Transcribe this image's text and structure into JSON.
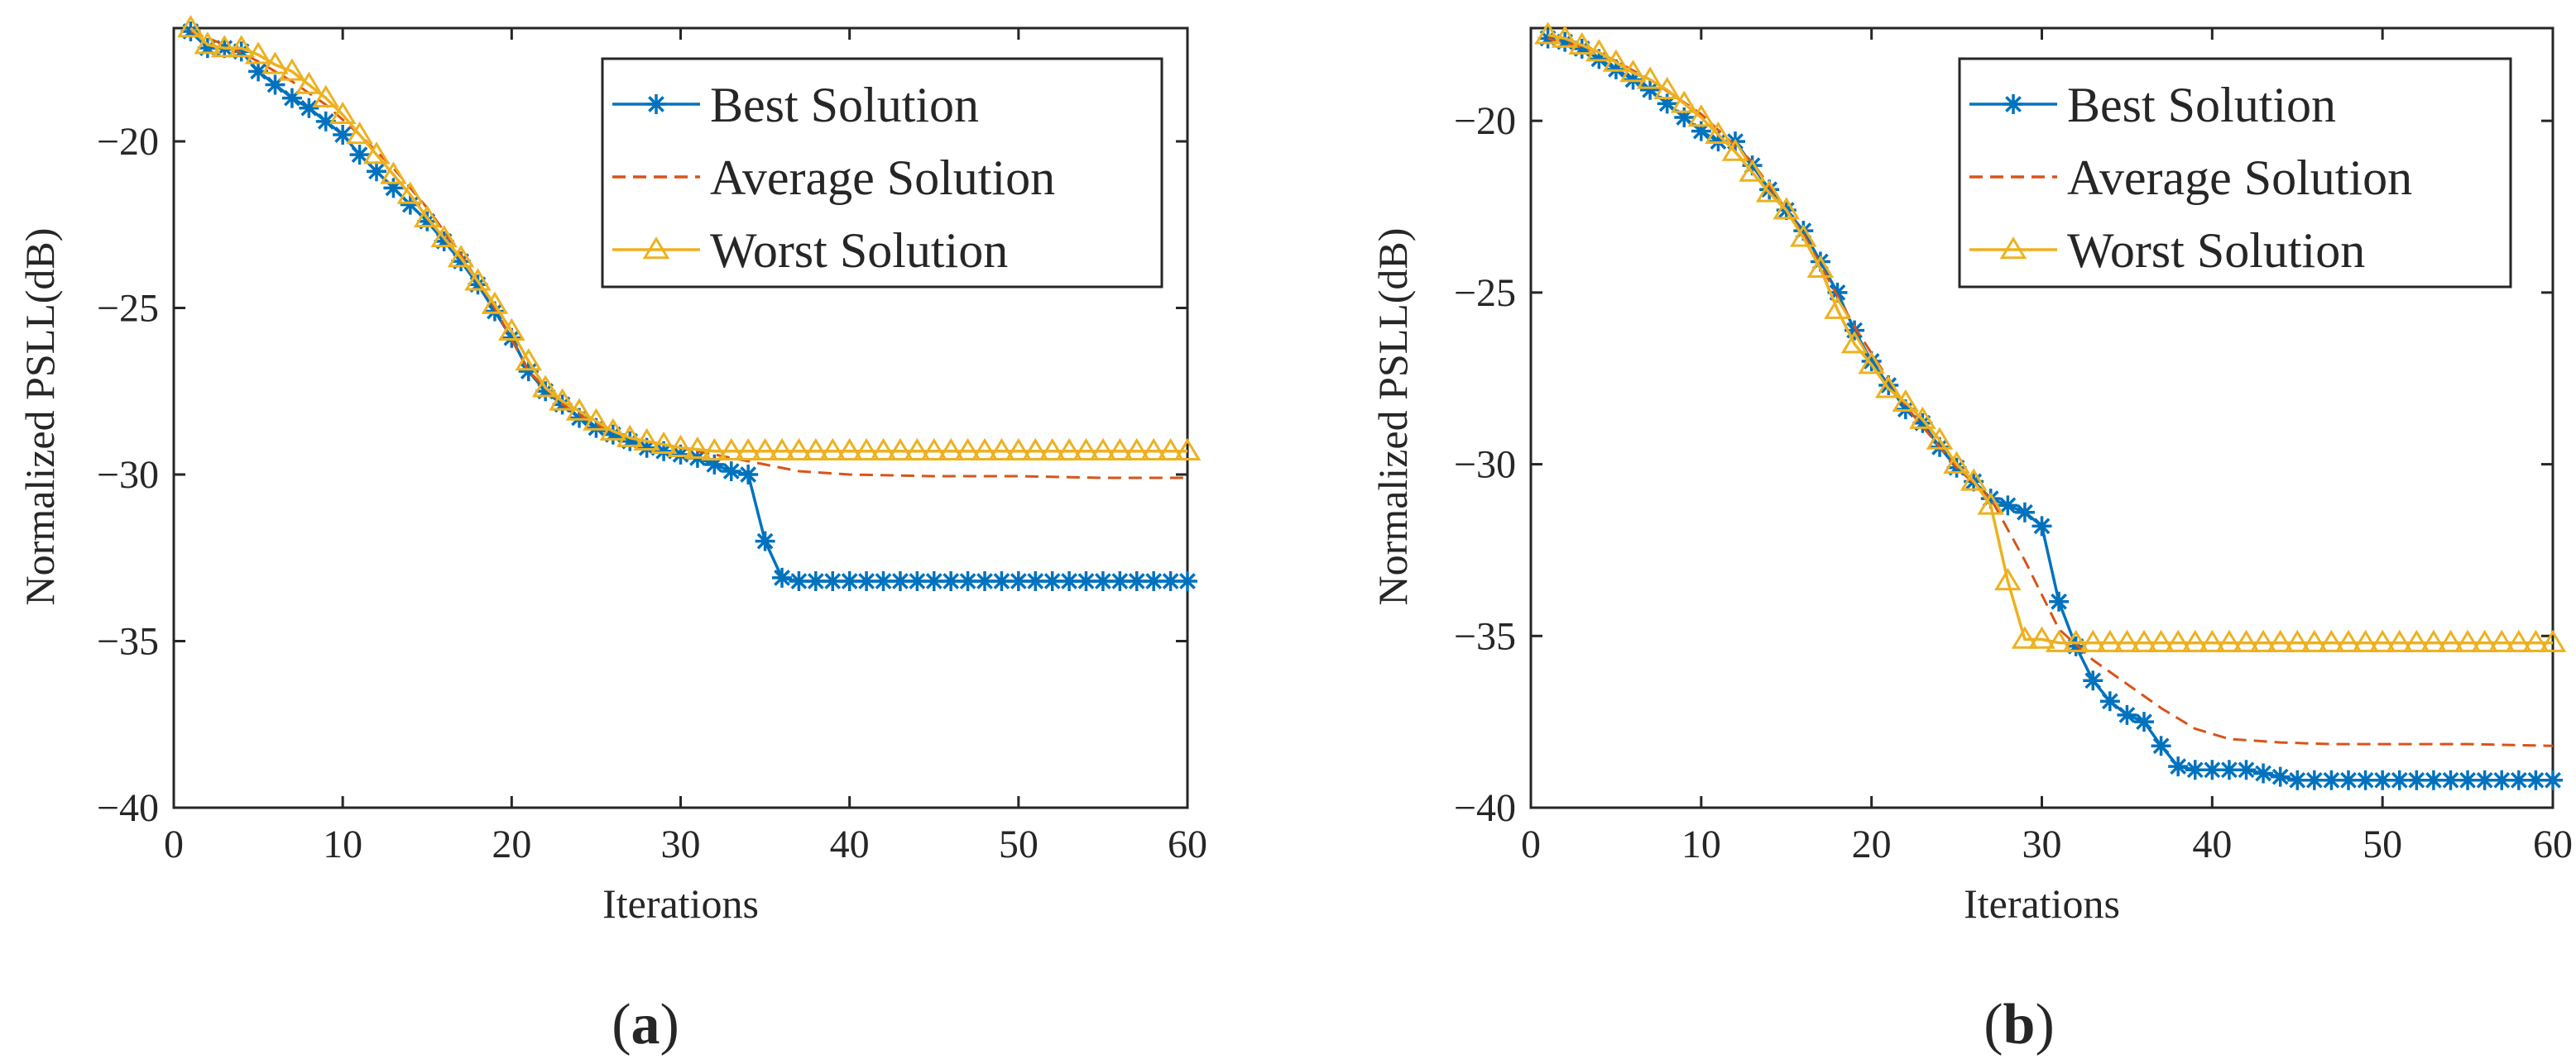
{
  "colors": {
    "best": "#0072BD",
    "average": "#D95319",
    "worst": "#EDB120",
    "axis": "#262626"
  },
  "chart_data": [
    {
      "panel_label": "a",
      "type": "line",
      "xlabel": "Iterations",
      "ylabel": "Normalized PSLL(dB)",
      "xlim": [
        0,
        60
      ],
      "ylim": [
        -40,
        -16.6
      ],
      "xticks": [
        0,
        10,
        20,
        30,
        40,
        50,
        60
      ],
      "yticks": [
        -20,
        -25,
        -30,
        -35,
        -40
      ],
      "legend_position": "top-right",
      "grid": false,
      "series": [
        {
          "name": "Best Solution",
          "style": "solid",
          "marker": "asterisk",
          "x": [
            1,
            2,
            3,
            4,
            5,
            6,
            7,
            8,
            9,
            10,
            11,
            12,
            13,
            14,
            15,
            16,
            17,
            18,
            19,
            20,
            21,
            22,
            23,
            24,
            25,
            26,
            27,
            28,
            29,
            30,
            31,
            32,
            33,
            34,
            35,
            36,
            37,
            38,
            39,
            40,
            41,
            42,
            43,
            44,
            45,
            46,
            47,
            48,
            49,
            50,
            51,
            52,
            53,
            54,
            55,
            56,
            57,
            58,
            59,
            60
          ],
          "y": [
            -16.7,
            -17.2,
            -17.2,
            -17.3,
            -17.9,
            -18.3,
            -18.7,
            -19.0,
            -19.4,
            -19.8,
            -20.4,
            -20.9,
            -21.4,
            -21.9,
            -22.4,
            -23.0,
            -23.6,
            -24.3,
            -25.1,
            -25.9,
            -26.9,
            -27.5,
            -27.9,
            -28.3,
            -28.6,
            -28.8,
            -29.0,
            -29.2,
            -29.3,
            -29.4,
            -29.5,
            -29.7,
            -29.9,
            -30.0,
            -32.0,
            -33.1,
            -33.2,
            -33.2,
            -33.2,
            -33.2,
            -33.2,
            -33.2,
            -33.2,
            -33.2,
            -33.2,
            -33.2,
            -33.2,
            -33.2,
            -33.2,
            -33.2,
            -33.2,
            -33.2,
            -33.2,
            -33.2,
            -33.2,
            -33.2,
            -33.2,
            -33.2,
            -33.2,
            -33.2
          ]
        },
        {
          "name": "Average Solution",
          "style": "dashed",
          "marker": "none",
          "x": [
            1,
            3,
            5,
            7,
            9,
            11,
            13,
            15,
            17,
            19,
            21,
            23,
            25,
            27,
            29,
            31,
            33,
            35,
            37,
            40,
            45,
            50,
            55,
            60
          ],
          "y": [
            -16.7,
            -17.1,
            -17.6,
            -18.2,
            -18.9,
            -19.8,
            -20.8,
            -22.0,
            -23.4,
            -25.0,
            -26.9,
            -27.9,
            -28.5,
            -28.9,
            -29.1,
            -29.3,
            -29.5,
            -29.7,
            -29.9,
            -30.0,
            -30.05,
            -30.05,
            -30.1,
            -30.1
          ]
        },
        {
          "name": "Worst Solution",
          "style": "solid",
          "marker": "triangle",
          "x": [
            1,
            2,
            3,
            4,
            5,
            6,
            7,
            8,
            9,
            10,
            11,
            12,
            13,
            14,
            15,
            16,
            17,
            18,
            19,
            20,
            21,
            22,
            23,
            24,
            25,
            26,
            27,
            28,
            29,
            30,
            31,
            32,
            33,
            34,
            35,
            36,
            37,
            38,
            39,
            40,
            41,
            42,
            43,
            44,
            45,
            46,
            47,
            48,
            49,
            50,
            51,
            52,
            53,
            54,
            55,
            56,
            57,
            58,
            59,
            60
          ],
          "y": [
            -16.6,
            -17.1,
            -17.2,
            -17.2,
            -17.4,
            -17.7,
            -17.9,
            -18.3,
            -18.7,
            -19.2,
            -19.8,
            -20.4,
            -21.0,
            -21.6,
            -22.3,
            -22.9,
            -23.5,
            -24.2,
            -24.9,
            -25.7,
            -26.6,
            -27.4,
            -27.8,
            -28.1,
            -28.4,
            -28.7,
            -28.9,
            -29.0,
            -29.1,
            -29.2,
            -29.25,
            -29.3,
            -29.3,
            -29.3,
            -29.3,
            -29.3,
            -29.3,
            -29.3,
            -29.3,
            -29.3,
            -29.3,
            -29.3,
            -29.3,
            -29.3,
            -29.3,
            -29.3,
            -29.3,
            -29.3,
            -29.3,
            -29.3,
            -29.3,
            -29.3,
            -29.3,
            -29.3,
            -29.3,
            -29.3,
            -29.3,
            -29.3,
            -29.3,
            -29.3
          ]
        }
      ]
    },
    {
      "panel_label": "b",
      "type": "line",
      "xlabel": "Iterations",
      "ylabel": "Normalized PSLL(dB)",
      "xlim": [
        0,
        60
      ],
      "ylim": [
        -40,
        -17.3
      ],
      "xticks": [
        0,
        10,
        20,
        30,
        40,
        50,
        60
      ],
      "yticks": [
        -20,
        -25,
        -30,
        -35,
        -40
      ],
      "legend_position": "top-right",
      "grid": false,
      "series": [
        {
          "name": "Best Solution",
          "style": "solid",
          "marker": "asterisk",
          "x": [
            1,
            2,
            3,
            4,
            5,
            6,
            7,
            8,
            9,
            10,
            11,
            12,
            13,
            14,
            15,
            16,
            17,
            18,
            19,
            20,
            21,
            22,
            23,
            24,
            25,
            26,
            27,
            28,
            29,
            30,
            31,
            32,
            33,
            34,
            35,
            36,
            37,
            38,
            39,
            40,
            41,
            42,
            43,
            44,
            45,
            46,
            47,
            48,
            49,
            50,
            51,
            52,
            53,
            54,
            55,
            56,
            57,
            58,
            59,
            60
          ],
          "y": [
            -17.6,
            -17.7,
            -17.9,
            -18.2,
            -18.5,
            -18.8,
            -19.1,
            -19.5,
            -19.9,
            -20.3,
            -20.6,
            -20.6,
            -21.3,
            -22.0,
            -22.6,
            -23.2,
            -24.1,
            -25.0,
            -26.1,
            -27.0,
            -27.7,
            -28.4,
            -28.8,
            -29.5,
            -30.1,
            -30.5,
            -31.0,
            -31.2,
            -31.4,
            -31.8,
            -34.0,
            -35.3,
            -36.3,
            -36.9,
            -37.3,
            -37.5,
            -38.2,
            -38.8,
            -38.9,
            -38.9,
            -38.9,
            -38.9,
            -39.0,
            -39.1,
            -39.2,
            -39.2,
            -39.2,
            -39.2,
            -39.2,
            -39.2,
            -39.2,
            -39.2,
            -39.2,
            -39.2,
            -39.2,
            -39.2,
            -39.2,
            -39.2,
            -39.2,
            -39.2
          ]
        },
        {
          "name": "Average Solution",
          "style": "dashed",
          "marker": "none",
          "x": [
            1,
            4,
            7,
            10,
            13,
            16,
            19,
            22,
            25,
            27,
            29,
            31,
            33,
            35,
            37,
            39,
            41,
            44,
            47,
            50,
            55,
            60
          ],
          "y": [
            -17.6,
            -18.0,
            -18.8,
            -19.8,
            -21.2,
            -23.3,
            -26.0,
            -28.3,
            -30.1,
            -31.0,
            -32.8,
            -34.8,
            -35.7,
            -36.4,
            -37.1,
            -37.7,
            -38.0,
            -38.1,
            -38.15,
            -38.15,
            -38.15,
            -38.2
          ]
        },
        {
          "name": "Worst Solution",
          "style": "solid",
          "marker": "triangle",
          "x": [
            1,
            2,
            3,
            4,
            5,
            6,
            7,
            8,
            9,
            10,
            11,
            12,
            13,
            14,
            15,
            16,
            17,
            18,
            19,
            20,
            21,
            22,
            23,
            24,
            25,
            26,
            27,
            28,
            29,
            30,
            31,
            32,
            33,
            34,
            35,
            36,
            37,
            38,
            39,
            40,
            41,
            42,
            43,
            44,
            45,
            46,
            47,
            48,
            49,
            50,
            51,
            52,
            53,
            54,
            55,
            56,
            57,
            58,
            59,
            60
          ],
          "y": [
            -17.5,
            -17.6,
            -17.8,
            -18.0,
            -18.3,
            -18.6,
            -18.8,
            -19.1,
            -19.5,
            -19.9,
            -20.4,
            -20.9,
            -21.5,
            -22.1,
            -22.6,
            -23.4,
            -24.3,
            -25.5,
            -26.5,
            -27.1,
            -27.8,
            -28.2,
            -28.7,
            -29.3,
            -30.0,
            -30.5,
            -31.2,
            -33.4,
            -35.1,
            -35.1,
            -35.2,
            -35.2,
            -35.2,
            -35.2,
            -35.2,
            -35.2,
            -35.2,
            -35.2,
            -35.2,
            -35.2,
            -35.2,
            -35.2,
            -35.2,
            -35.2,
            -35.2,
            -35.2,
            -35.2,
            -35.2,
            -35.2,
            -35.2,
            -35.2,
            -35.2,
            -35.2,
            -35.2,
            -35.2,
            -35.2,
            -35.2,
            -35.2,
            -35.2,
            -35.2
          ]
        }
      ]
    }
  ]
}
